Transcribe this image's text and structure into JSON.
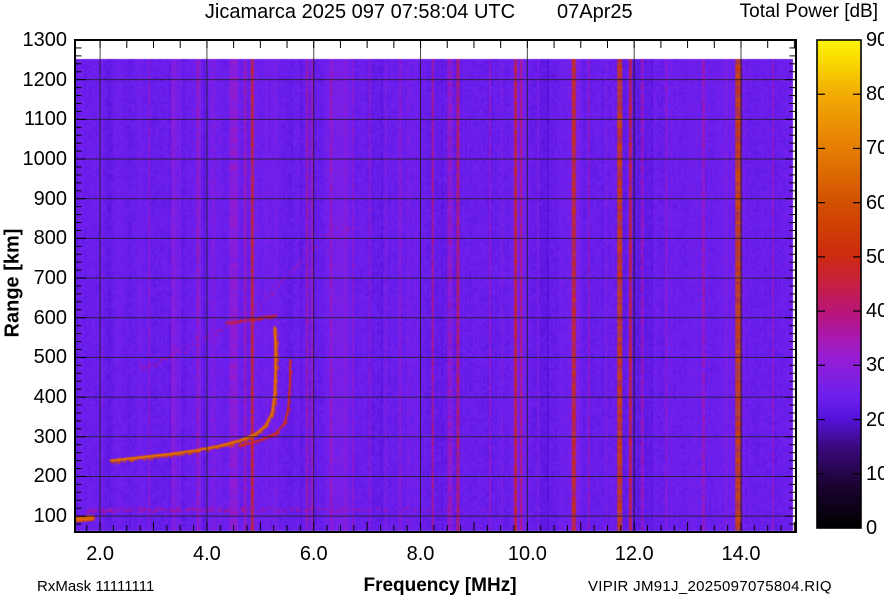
{
  "header": {
    "title": "Jicamarca 2025 097 07:58:04 UTC",
    "date": "07Apr25",
    "colorbar_title": "Total Power [dB]"
  },
  "axes": {
    "ylabel": "Range [km]",
    "xlabel": "Frequency [MHz]"
  },
  "footer": {
    "rx_mask": "RxMask 11111111",
    "file_id": "VIPIR  JM91J_2025097075804.RIQ"
  },
  "chart_data": {
    "type": "heatmap",
    "title": "Jicamarca 2025 097 07:58:04 UTC   07Apr25",
    "xlabel": "Frequency [MHz]",
    "ylabel": "Range [km]",
    "colorbar_label": "Total Power [dB]",
    "xlim": [
      1.53,
      15.03
    ],
    "ylim": [
      60,
      1300
    ],
    "data_top_km": 1250,
    "grid": "on",
    "x_tick_labels": [
      "2.0",
      "4.0",
      "6.0",
      "8.0",
      "10.0",
      "12.0",
      "14.0"
    ],
    "x_tick_values": [
      2,
      4,
      6,
      8,
      10,
      12,
      14
    ],
    "x_minor_step": 0.25,
    "x_top_tick_step": 0.5,
    "y_tick_labels": [
      "100",
      "200",
      "300",
      "400",
      "500",
      "600",
      "700",
      "800",
      "900",
      "1000",
      "1100",
      "1200",
      "1300"
    ],
    "y_tick_values": [
      100,
      200,
      300,
      400,
      500,
      600,
      700,
      800,
      900,
      1000,
      1100,
      1200,
      1300
    ],
    "y_minor_step": 20,
    "grid_x_values": [
      2,
      4,
      6,
      8,
      10,
      12,
      14
    ],
    "grid_y_values": [
      100,
      200,
      300,
      400,
      500,
      600,
      700,
      800,
      900,
      1000,
      1100,
      1200
    ],
    "colorbar": {
      "min": 0,
      "max": 90,
      "tick_values": [
        0,
        10,
        20,
        30,
        40,
        50,
        60,
        70,
        80,
        90
      ],
      "tick_labels": [
        "0",
        "10",
        "20",
        "30",
        "40",
        "50",
        "60",
        "70",
        "80",
        "90"
      ]
    },
    "background_db": 23.8,
    "colormap_stops": [
      [
        0,
        "#000000"
      ],
      [
        8,
        "#1c0333"
      ],
      [
        15,
        "#3a0a7e"
      ],
      [
        20,
        "#5411d8"
      ],
      [
        24,
        "#6c1fee"
      ],
      [
        28,
        "#831fe0"
      ],
      [
        32,
        "#9a1cd0"
      ],
      [
        36,
        "#ac18a6"
      ],
      [
        40,
        "#ba1676"
      ],
      [
        45,
        "#c61f42"
      ],
      [
        50,
        "#ce2a12"
      ],
      [
        55,
        "#cf3d04"
      ],
      [
        60,
        "#d25002"
      ],
      [
        65,
        "#dc6702"
      ],
      [
        70,
        "#e67e03"
      ],
      [
        75,
        "#ec9303"
      ],
      [
        80,
        "#f2ab04"
      ],
      [
        85,
        "#f8d102"
      ],
      [
        90,
        "#fdf503"
      ]
    ],
    "rfi_lines": [
      {
        "f": 2.92,
        "db": 31,
        "w": 2
      },
      {
        "f": 3.35,
        "db": 30,
        "w": 2
      },
      {
        "f": 3.83,
        "db": 35,
        "w": 2
      },
      {
        "f": 4.13,
        "db": 30,
        "w": 2
      },
      {
        "f": 4.5,
        "db": 31.5,
        "w": 8
      },
      {
        "f": 4.72,
        "db": 36,
        "w": 2
      },
      {
        "f": 4.85,
        "db": 48,
        "w": 3
      },
      {
        "f": 5.88,
        "db": 37,
        "w": 2
      },
      {
        "f": 5.97,
        "db": 35,
        "w": 2
      },
      {
        "f": 6.33,
        "db": 35,
        "w": 2
      },
      {
        "f": 6.74,
        "db": 32,
        "w": 2
      },
      {
        "f": 7.05,
        "db": 31,
        "w": 2
      },
      {
        "f": 7.62,
        "db": 32,
        "w": 2
      },
      {
        "f": 8.23,
        "db": 39,
        "w": 2
      },
      {
        "f": 8.55,
        "db": 33,
        "w": 5
      },
      {
        "f": 8.7,
        "db": 42,
        "w": 3
      },
      {
        "f": 9.3,
        "db": 32,
        "w": 2
      },
      {
        "f": 9.78,
        "db": 47,
        "w": 3
      },
      {
        "f": 9.88,
        "db": 41,
        "w": 2
      },
      {
        "f": 10.87,
        "db": 50,
        "w": 4
      },
      {
        "f": 11.15,
        "db": 33,
        "w": 2
      },
      {
        "f": 11.73,
        "db": 55,
        "w": 5
      },
      {
        "f": 11.93,
        "db": 46,
        "w": 3
      },
      {
        "f": 12.15,
        "db": 34,
        "w": 3
      },
      {
        "f": 12.6,
        "db": 32,
        "w": 2
      },
      {
        "f": 13.3,
        "db": 34,
        "w": 3
      },
      {
        "f": 13.95,
        "db": 57,
        "w": 6
      },
      {
        "f": 14.6,
        "db": 33,
        "w": 2
      }
    ],
    "traces": [
      {
        "name": "f-region-o-mode-trace",
        "core": true,
        "core_w": 2.6,
        "peak_db": 67,
        "spread_km": 10,
        "density": 3.0,
        "points": [
          [
            2.2,
            240
          ],
          [
            2.6,
            246
          ],
          [
            3.0,
            252
          ],
          [
            3.4,
            258
          ],
          [
            3.8,
            266
          ],
          [
            4.2,
            276
          ],
          [
            4.6,
            290
          ],
          [
            4.9,
            306
          ],
          [
            5.1,
            328
          ],
          [
            5.22,
            360
          ],
          [
            5.27,
            410
          ],
          [
            5.285,
            470
          ],
          [
            5.285,
            530
          ],
          [
            5.27,
            575
          ]
        ]
      },
      {
        "name": "f-region-x-mode-trace",
        "core": true,
        "core_w": 1.6,
        "peak_db": 52,
        "spread_km": 7,
        "density": 1.6,
        "points": [
          [
            4.6,
            278
          ],
          [
            5.0,
            292
          ],
          [
            5.3,
            310
          ],
          [
            5.45,
            335
          ],
          [
            5.52,
            370
          ],
          [
            5.55,
            430
          ],
          [
            5.56,
            495
          ]
        ]
      },
      {
        "name": "spread-f-diffuse-band",
        "core": false,
        "peak_db": 40,
        "spread_km": 28,
        "density": 1.5,
        "fade_to": 0.35,
        "points": [
          [
            2.75,
            470
          ],
          [
            3.5,
            520
          ],
          [
            4.3,
            575
          ],
          [
            4.85,
            615
          ],
          [
            5.2,
            665
          ],
          [
            5.6,
            720
          ],
          [
            6.1,
            800
          ],
          [
            6.6,
            825
          ],
          [
            7.4,
            845
          ]
        ]
      },
      {
        "name": "f-peak-arc-600km",
        "core": false,
        "peak_db": 53,
        "spread_km": 10,
        "density": 2.6,
        "points": [
          [
            4.35,
            588
          ],
          [
            4.8,
            596
          ],
          [
            5.3,
            606
          ]
        ]
      },
      {
        "name": "e-region-echo-line",
        "core": false,
        "peak_db": 42,
        "spread_km": 14,
        "density": 2.0,
        "fade_to": 0.12,
        "points": [
          [
            1.75,
            116
          ],
          [
            4.0,
            118
          ],
          [
            6.5,
            118
          ],
          [
            9.2,
            117
          ]
        ]
      },
      {
        "name": "near-range-echo-blob",
        "core": true,
        "core_w": 6,
        "peak_db": 64,
        "spread_km": 8,
        "density": 4.0,
        "points": [
          [
            1.54,
            92
          ],
          [
            1.85,
            95
          ]
        ]
      },
      {
        "name": "upper-wisp-echo",
        "core": false,
        "peak_db": 36,
        "spread_km": 5,
        "density": 0.9,
        "points": [
          [
            4.78,
            880
          ],
          [
            4.82,
            985
          ]
        ]
      }
    ]
  }
}
